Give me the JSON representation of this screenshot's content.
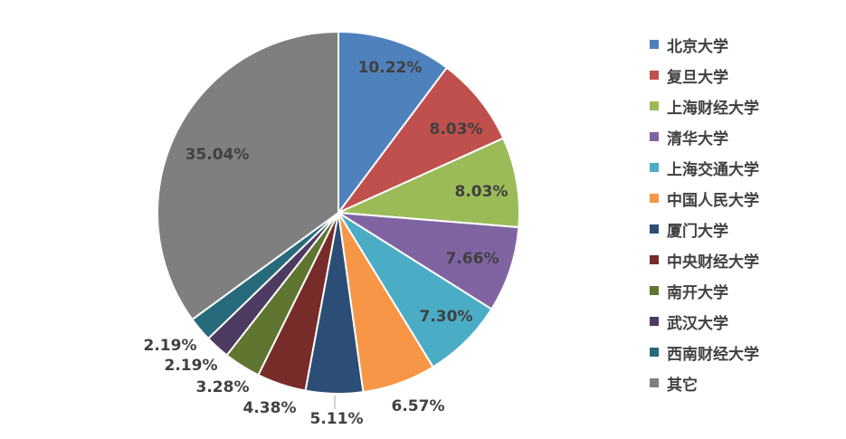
{
  "chart_data": {
    "type": "pie",
    "title": "",
    "legend_position": "right",
    "slices": [
      {
        "name": "北京大学",
        "value": 10.22,
        "label": "10.22%",
        "color": "#4F81BD"
      },
      {
        "name": "复旦大学",
        "value": 8.03,
        "label": "8.03%",
        "color": "#C0504D"
      },
      {
        "name": "上海财经大学",
        "value": 8.03,
        "label": "8.03%",
        "color": "#9BBB59"
      },
      {
        "name": "清华大学",
        "value": 7.66,
        "label": "7.66%",
        "color": "#8064A2"
      },
      {
        "name": "上海交通大学",
        "value": 7.3,
        "label": "7.30%",
        "color": "#4BACC6"
      },
      {
        "name": "中国人民大学",
        "value": 6.57,
        "label": "6.57%",
        "color": "#F79646"
      },
      {
        "name": "厦门大学",
        "value": 5.11,
        "label": "5.11%",
        "color": "#2C4D75"
      },
      {
        "name": "中央财经大学",
        "value": 4.38,
        "label": "4.38%",
        "color": "#772C2A"
      },
      {
        "name": "南开大学",
        "value": 3.28,
        "label": "3.28%",
        "color": "#5F7530"
      },
      {
        "name": "武汉大学",
        "value": 2.19,
        "label": "2.19%",
        "color": "#4D3B62"
      },
      {
        "name": "西南财经大学",
        "value": 2.19,
        "label": "2.19%",
        "color": "#276A7C"
      },
      {
        "name": "其它",
        "value": 35.04,
        "label": "35.04%",
        "color": "#7F7F7F"
      }
    ]
  }
}
